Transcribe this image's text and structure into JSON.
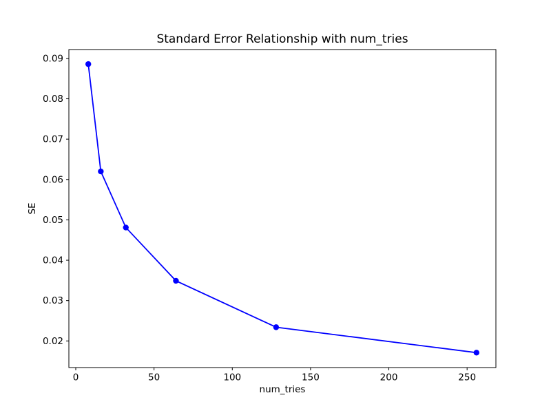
{
  "figure": {
    "background": "#ffffff",
    "text_color": "#000000",
    "spine_color": "#000000"
  },
  "chart_data": {
    "type": "line",
    "title": "Standard Error Relationship with num_tries",
    "xlabel": "num_tries",
    "ylabel": "SE",
    "x": [
      8,
      16,
      32,
      64,
      128,
      256
    ],
    "y": [
      0.0886,
      0.062,
      0.0481,
      0.0349,
      0.0234,
      0.0171
    ],
    "line_color": "#0000ff",
    "marker": "circle",
    "marker_color": "#0000ff",
    "xlim": [
      -4.4,
      268.4
    ],
    "ylim": [
      0.0134,
      0.0922
    ],
    "xticks": [
      0,
      50,
      100,
      150,
      200,
      250
    ],
    "xtick_labels": [
      "0",
      "50",
      "100",
      "150",
      "200",
      "250"
    ],
    "yticks": [
      0.02,
      0.03,
      0.04,
      0.05,
      0.06,
      0.07,
      0.08,
      0.09
    ],
    "ytick_labels": [
      "0.02",
      "0.03",
      "0.04",
      "0.05",
      "0.06",
      "0.07",
      "0.08",
      "0.09"
    ],
    "grid": false,
    "legend": null
  }
}
